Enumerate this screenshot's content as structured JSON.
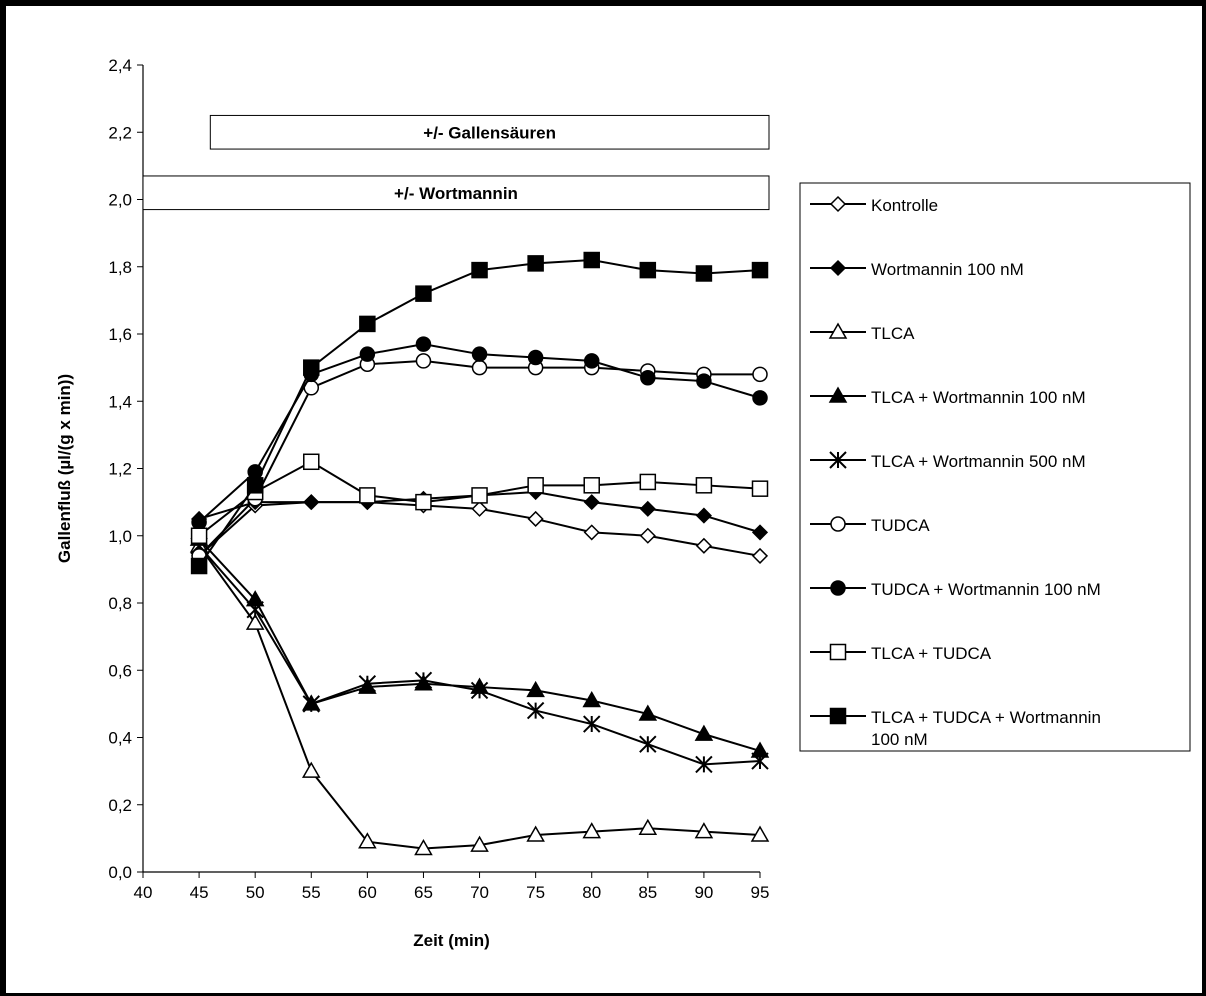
{
  "chart_data": {
    "type": "line",
    "title": "",
    "xlabel": "Zeit (min)",
    "ylabel": "Gallenfluß (µl/(g x min))",
    "xlim": [
      40,
      95
    ],
    "ylim": [
      0,
      2.4
    ],
    "x_ticks": [
      "40",
      "45",
      "50",
      "55",
      "60",
      "65",
      "70",
      "75",
      "80",
      "85",
      "90",
      "95"
    ],
    "y_ticks": [
      "0,0",
      "0,2",
      "0,4",
      "0,6",
      "0,8",
      "1,0",
      "1,2",
      "1,4",
      "1,6",
      "1,8",
      "2,0",
      "2,2",
      "2,4"
    ],
    "grid": false,
    "legend_position": "right",
    "x": [
      45,
      50,
      55,
      60,
      65,
      70,
      75,
      80,
      85,
      90,
      95
    ],
    "annotations": [
      {
        "label": "+/- Gallensäuren",
        "x_start": 46,
        "x_end": 95,
        "y_low": 2.15,
        "y_high": 2.25
      },
      {
        "label": "+/- Wortmannin",
        "x_start": 40,
        "x_end": 95,
        "y_low": 1.97,
        "y_high": 2.07
      }
    ],
    "series": [
      {
        "name": "Kontrolle",
        "marker": "diamond",
        "filled": false,
        "values": [
          0.94,
          1.09,
          1.1,
          1.1,
          1.09,
          1.08,
          1.05,
          1.01,
          1.0,
          0.97,
          0.94
        ]
      },
      {
        "name": "Wortmannin 100 nM",
        "marker": "diamond",
        "filled": true,
        "values": [
          1.05,
          1.1,
          1.1,
          1.1,
          1.11,
          1.12,
          1.13,
          1.1,
          1.08,
          1.06,
          1.01
        ]
      },
      {
        "name": "TLCA",
        "marker": "triangle",
        "filled": false,
        "values": [
          0.97,
          0.74,
          0.3,
          0.09,
          0.07,
          0.08,
          0.11,
          0.12,
          0.13,
          0.12,
          0.11
        ]
      },
      {
        "name": "TLCA + Wortmannin 100 nM",
        "marker": "triangle",
        "filled": true,
        "values": [
          0.99,
          0.81,
          0.5,
          0.55,
          0.56,
          0.55,
          0.54,
          0.51,
          0.47,
          0.41,
          0.36
        ]
      },
      {
        "name": "TLCA + Wortmannin 500 nM",
        "marker": "star",
        "filled": false,
        "values": [
          0.97,
          0.78,
          0.5,
          0.56,
          0.57,
          0.54,
          0.48,
          0.44,
          0.38,
          0.32,
          0.33
        ]
      },
      {
        "name": "TUDCA",
        "marker": "circle",
        "filled": false,
        "values": [
          0.94,
          1.11,
          1.44,
          1.51,
          1.52,
          1.5,
          1.5,
          1.5,
          1.49,
          1.48,
          1.48
        ]
      },
      {
        "name": "TUDCA + Wortmannin 100 nM",
        "marker": "circle",
        "filled": true,
        "values": [
          1.04,
          1.19,
          1.48,
          1.54,
          1.57,
          1.54,
          1.53,
          1.52,
          1.47,
          1.46,
          1.41
        ]
      },
      {
        "name": "TLCA + TUDCA",
        "marker": "square",
        "filled": false,
        "values": [
          1.0,
          1.13,
          1.22,
          1.12,
          1.1,
          1.12,
          1.15,
          1.15,
          1.16,
          1.15,
          1.14
        ]
      },
      {
        "name": "TLCA + TUDCA + Wortmannin 100 nM",
        "legend_lines": [
          "TLCA + TUDCA + Wortmannin",
          "100 nM"
        ],
        "marker": "square",
        "filled": true,
        "values": [
          0.91,
          1.15,
          1.5,
          1.63,
          1.72,
          1.79,
          1.81,
          1.82,
          1.79,
          1.78,
          1.79
        ]
      }
    ]
  }
}
